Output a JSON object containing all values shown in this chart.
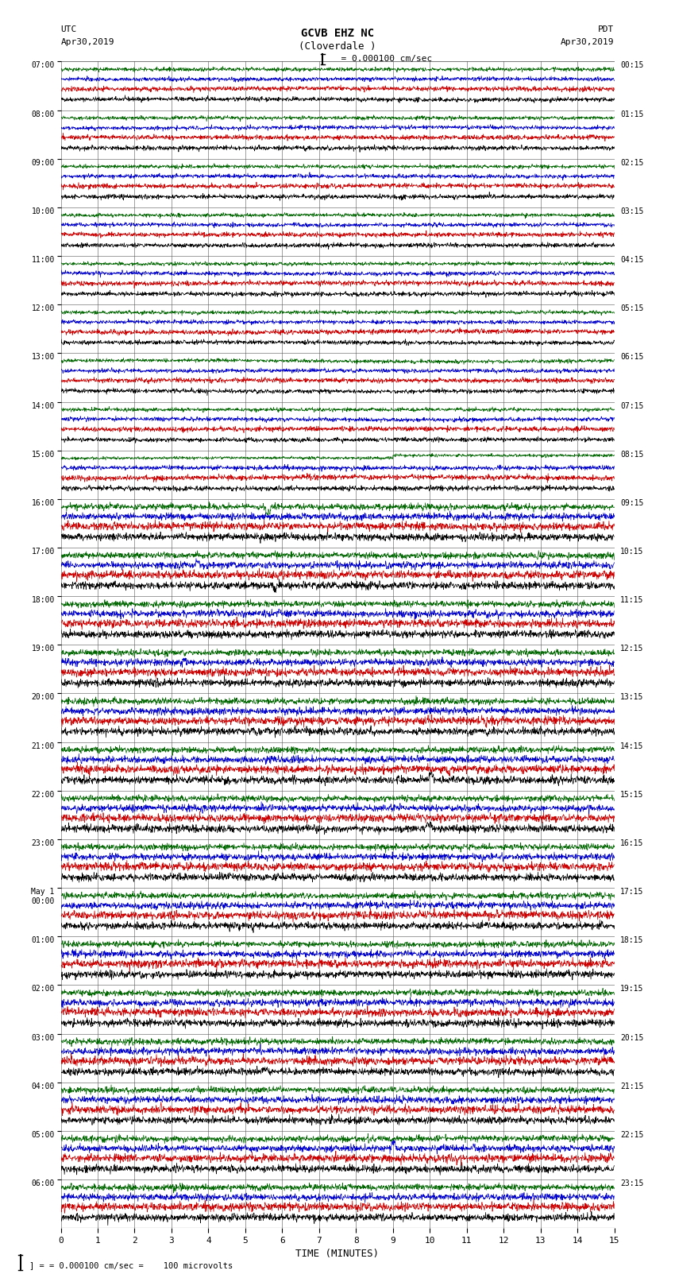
{
  "title_line1": "GCVB EHZ NC",
  "title_line2": "(Cloverdale )",
  "scale_text": "= 0.000100 cm/sec",
  "left_header_line1": "UTC",
  "left_header_line2": "Apr30,2019",
  "right_header_line1": "PDT",
  "right_header_line2": "Apr30,2019",
  "bottom_note": "= 0.000100 cm/sec =    100 microvolts",
  "xlabel": "TIME (MINUTES)",
  "xmin": 0,
  "xmax": 15,
  "xticks": [
    0,
    1,
    2,
    3,
    4,
    5,
    6,
    7,
    8,
    9,
    10,
    11,
    12,
    13,
    14,
    15
  ],
  "background_color": "#ffffff",
  "trace_colors": [
    "#000000",
    "#cc0000",
    "#0000cc",
    "#006600"
  ],
  "num_rows": 24,
  "utc_labels": [
    "07:00",
    "08:00",
    "09:00",
    "10:00",
    "11:00",
    "12:00",
    "13:00",
    "14:00",
    "15:00",
    "16:00",
    "17:00",
    "18:00",
    "19:00",
    "20:00",
    "21:00",
    "22:00",
    "23:00",
    "May 1\n00:00",
    "01:00",
    "02:00",
    "03:00",
    "04:00",
    "05:00",
    "06:00"
  ],
  "pdt_labels": [
    "00:15",
    "01:15",
    "02:15",
    "03:15",
    "04:15",
    "05:15",
    "06:15",
    "07:15",
    "08:15",
    "09:15",
    "10:15",
    "11:15",
    "12:15",
    "13:15",
    "14:15",
    "15:15",
    "16:15",
    "17:15",
    "18:15",
    "19:15",
    "20:15",
    "21:15",
    "22:15",
    "23:15"
  ],
  "fig_width": 8.5,
  "fig_height": 16.13,
  "noise_seed": 42
}
